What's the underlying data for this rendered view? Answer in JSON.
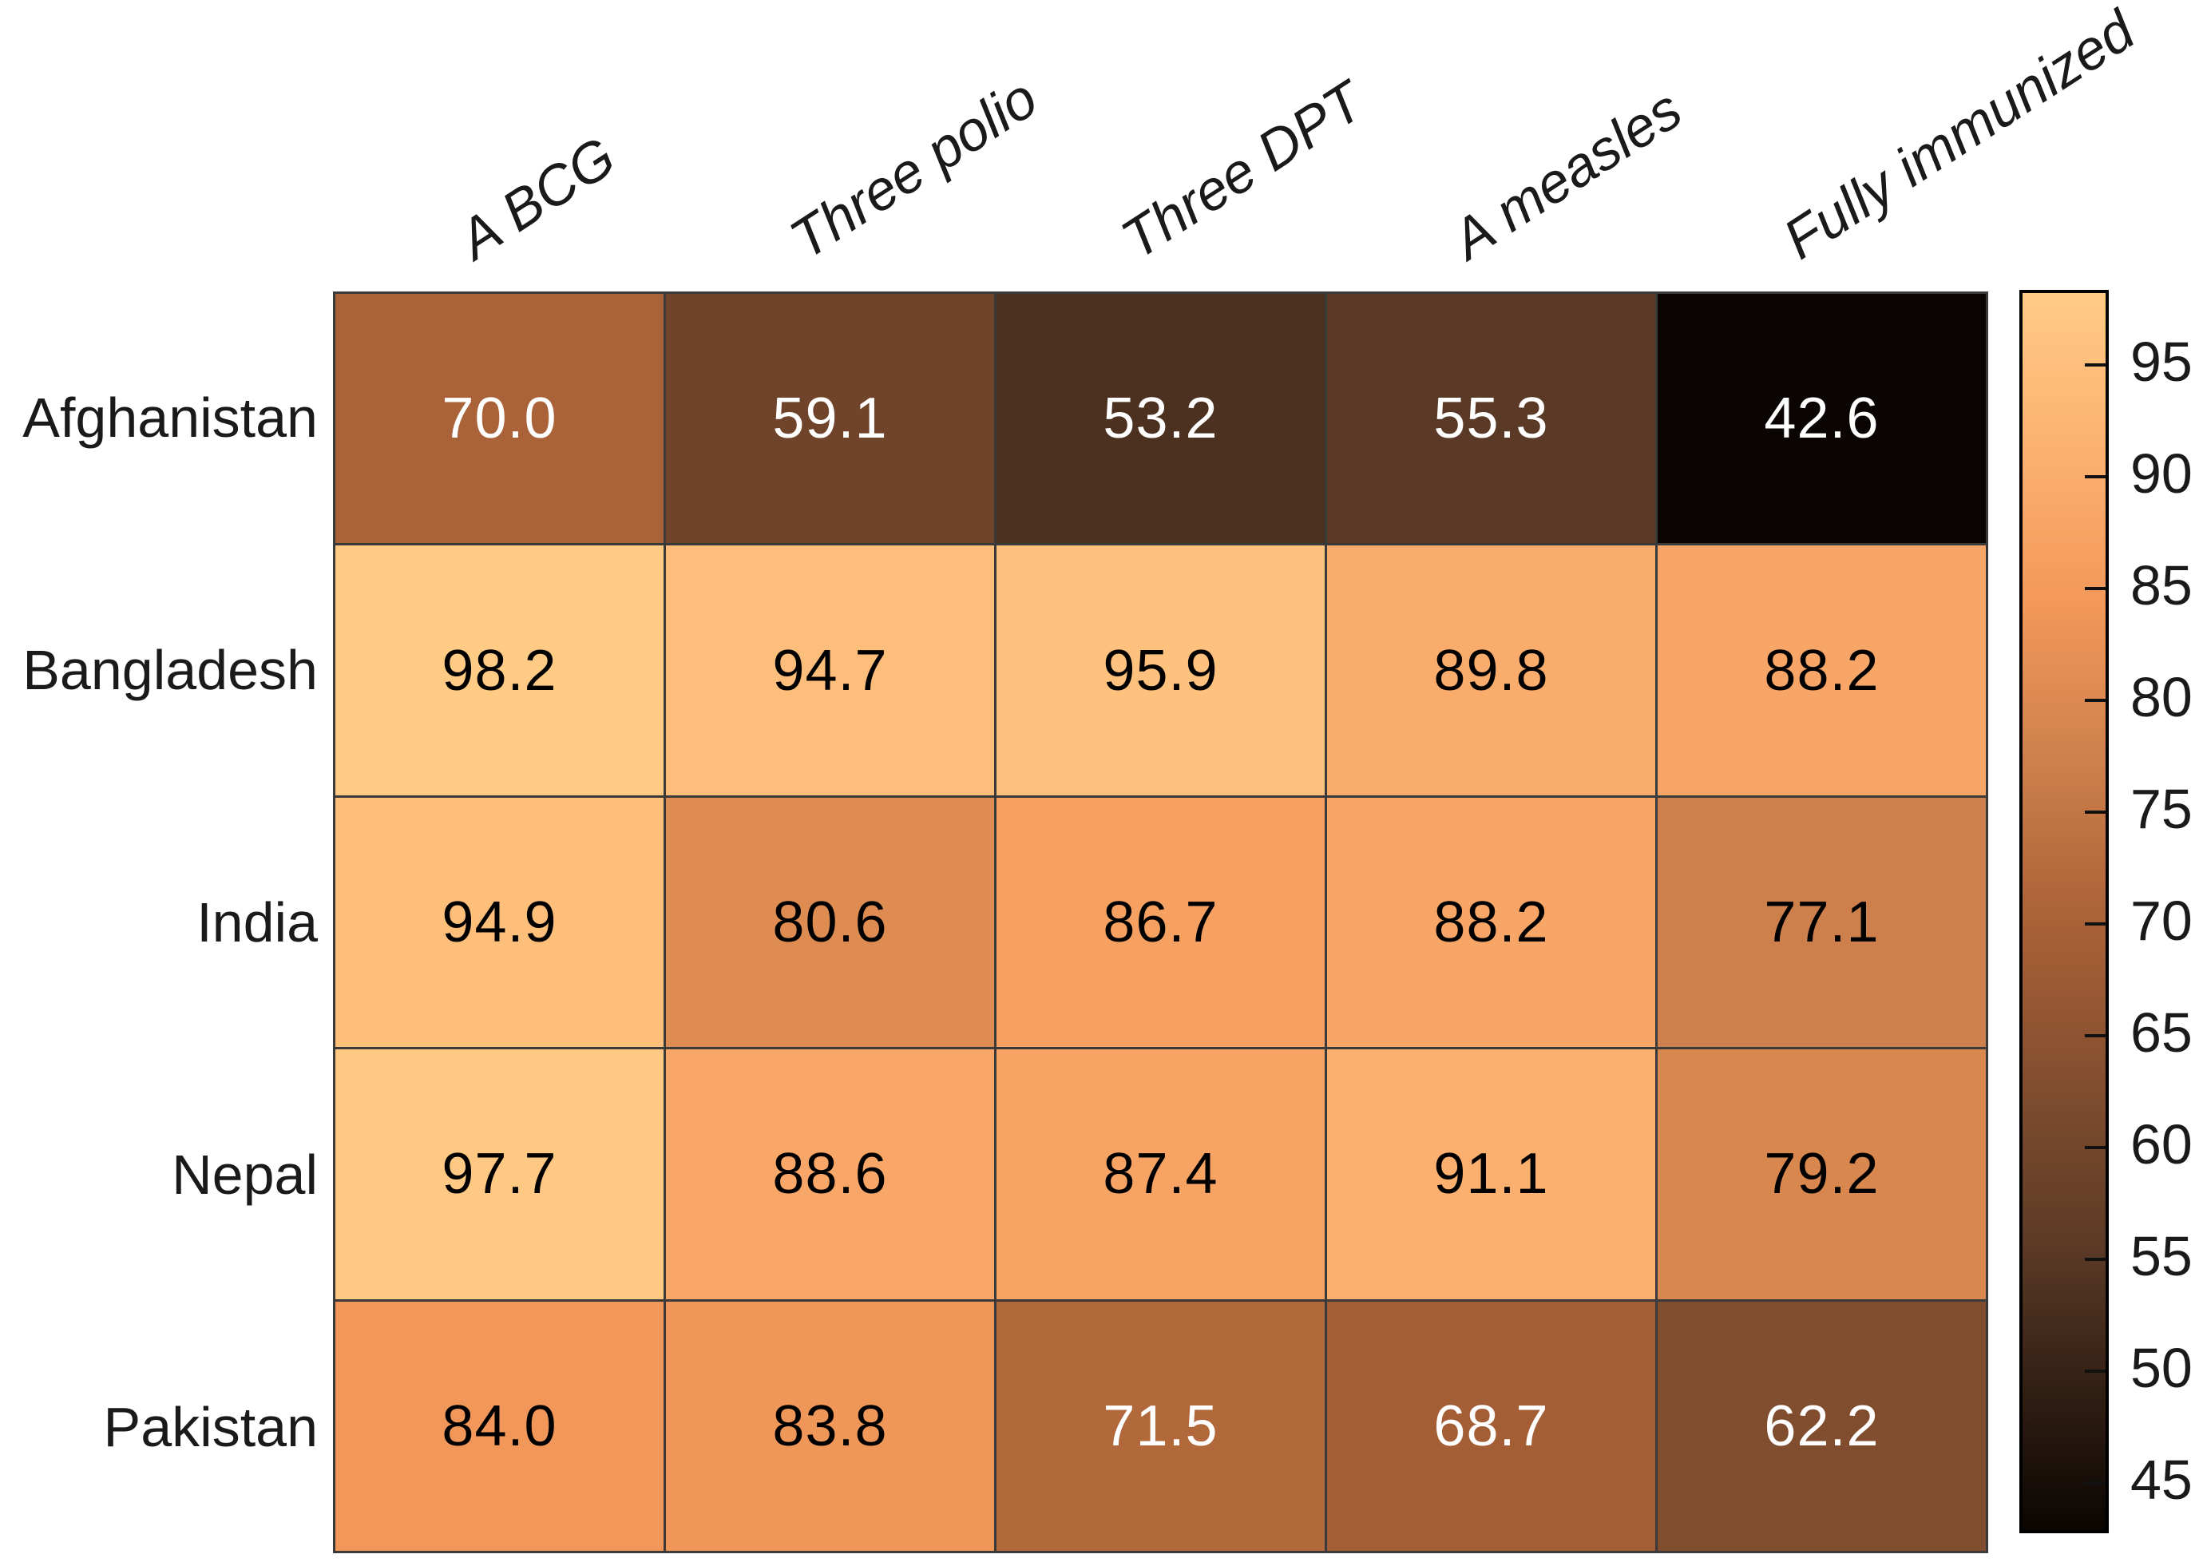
{
  "chart_data": {
    "type": "heatmap",
    "title": "",
    "rows": [
      "Afghanistan",
      "Bangladesh",
      "India",
      "Nepal",
      "Pakistan"
    ],
    "columns": [
      "A BCG",
      "Three polio",
      "Three DPT",
      "A measles",
      "Fully immunized"
    ],
    "values": [
      [
        70.0,
        59.1,
        53.2,
        55.3,
        42.6
      ],
      [
        98.2,
        94.7,
        95.9,
        89.8,
        88.2
      ],
      [
        94.9,
        80.6,
        86.7,
        88.2,
        77.1
      ],
      [
        97.7,
        88.6,
        87.4,
        91.1,
        79.2
      ],
      [
        84.0,
        83.8,
        71.5,
        68.7,
        62.2
      ]
    ],
    "value_decimals": 1,
    "colorbar": {
      "ticks": [
        95,
        90,
        85,
        80,
        75,
        70,
        65,
        60,
        55,
        50,
        45
      ],
      "vmin": 42.6,
      "vmax": 98.2,
      "position": "right"
    },
    "colormap": {
      "name": "copper-like",
      "stops": [
        {
          "t": 0.0,
          "color": "#0a0502"
        },
        {
          "t": 0.23,
          "color": "#5b3a26"
        },
        {
          "t": 0.5,
          "color": "#ac6338"
        },
        {
          "t": 0.62,
          "color": "#cd804b"
        },
        {
          "t": 0.75,
          "color": "#f2985a"
        },
        {
          "t": 0.87,
          "color": "#fcb070"
        },
        {
          "t": 1.0,
          "color": "#ffcb85"
        }
      ],
      "text_light_threshold_t": 0.57
    },
    "grid": true,
    "legend_position": "right"
  },
  "colors": {
    "background": "#ffffff",
    "grid_line": "#3a3a3a",
    "label_text": "#1a1a1a",
    "cell_text_light": "#ffffff",
    "cell_text_dark": "#000000",
    "colorbar_border": "#000000"
  }
}
